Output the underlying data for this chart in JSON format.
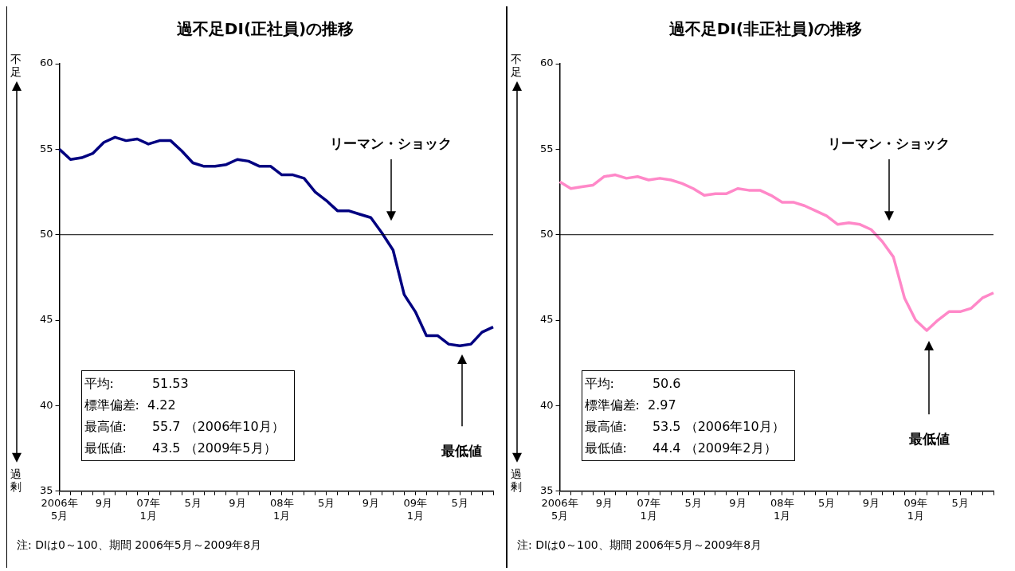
{
  "chart_data": [
    {
      "type": "line",
      "title": "過不足DI(正社員)の推移",
      "categories": [
        "2006年\n5月",
        null,
        null,
        null,
        "9月",
        null,
        null,
        null,
        "07年\n1月",
        null,
        null,
        null,
        "5月",
        null,
        null,
        null,
        "9月",
        null,
        null,
        null,
        "08年\n1月",
        null,
        null,
        null,
        "5月",
        null,
        null,
        null,
        "9月",
        null,
        null,
        null,
        "09年\n1月",
        null,
        null,
        null,
        "5月",
        null,
        null,
        null
      ],
      "series": [
        {
          "color": "#000080",
          "values": [
            55.0,
            54.4,
            54.5,
            54.75,
            55.4,
            55.7,
            55.5,
            55.6,
            55.3,
            55.5,
            55.5,
            54.9,
            54.2,
            54.0,
            54.0,
            54.1,
            54.4,
            54.3,
            54.0,
            54.0,
            53.5,
            53.5,
            53.3,
            52.5,
            52.0,
            51.4,
            51.4,
            51.2,
            51.0,
            50.1,
            49.1,
            46.5,
            45.5,
            44.1,
            44.1,
            43.6,
            43.5,
            43.6,
            44.3,
            44.6
          ]
        }
      ],
      "ylim": [
        35,
        60
      ],
      "yticks": [
        35,
        40,
        45,
        50,
        55,
        60
      ],
      "grid": false,
      "legend": false,
      "marker": "none",
      "ref_lines": [
        {
          "axis": "y",
          "value": 50,
          "color": "#000000"
        }
      ],
      "annotations": [
        "リーマン・ショック",
        "最低値",
        "平均:　　　51.53",
        "標準偏差:  4.22",
        "最高値:　　55.7 （2006年10月）",
        "最低値:　　43.5 （2009年5月）",
        "注: DIは0～100、期間 2006年5月～2009年8月",
        "不足",
        "過剰"
      ]
    },
    {
      "type": "line",
      "title": "過不足DI(非正社員)の推移",
      "categories": [
        "2006年\n5月",
        null,
        null,
        null,
        "9月",
        null,
        null,
        null,
        "07年\n1月",
        null,
        null,
        null,
        "5月",
        null,
        null,
        null,
        "9月",
        null,
        null,
        null,
        "08年\n1月",
        null,
        null,
        null,
        "5月",
        null,
        null,
        null,
        "9月",
        null,
        null,
        null,
        "09年\n1月",
        null,
        null,
        null,
        "5月",
        null,
        null,
        null
      ],
      "series": [
        {
          "color": "#ff88c8",
          "values": [
            53.1,
            52.7,
            52.8,
            52.9,
            53.4,
            53.5,
            53.3,
            53.4,
            53.2,
            53.3,
            53.2,
            53.0,
            52.7,
            52.3,
            52.4,
            52.4,
            52.7,
            52.6,
            52.6,
            52.3,
            51.9,
            51.9,
            51.7,
            51.4,
            51.1,
            50.6,
            50.7,
            50.6,
            50.3,
            49.6,
            48.7,
            46.3,
            45.0,
            44.4,
            45.0,
            45.5,
            45.5,
            45.7,
            46.3,
            46.6
          ]
        }
      ],
      "ylim": [
        35,
        60
      ],
      "yticks": [
        35,
        40,
        45,
        50,
        55,
        60
      ],
      "grid": false,
      "legend": false,
      "marker": "none",
      "ref_lines": [
        {
          "axis": "y",
          "value": 50,
          "color": "#000000"
        }
      ],
      "annotations": [
        "リーマン・ショック",
        "最低値",
        "平均:　　　50.6",
        "標準偏差:  2.97",
        "最高値:　　53.5 （2006年10月）",
        "最低値:　　44.4 （2009年2月）",
        "注: DIは0～100、期間 2006年5月～2009年8月",
        "不足",
        "過剰"
      ]
    }
  ]
}
